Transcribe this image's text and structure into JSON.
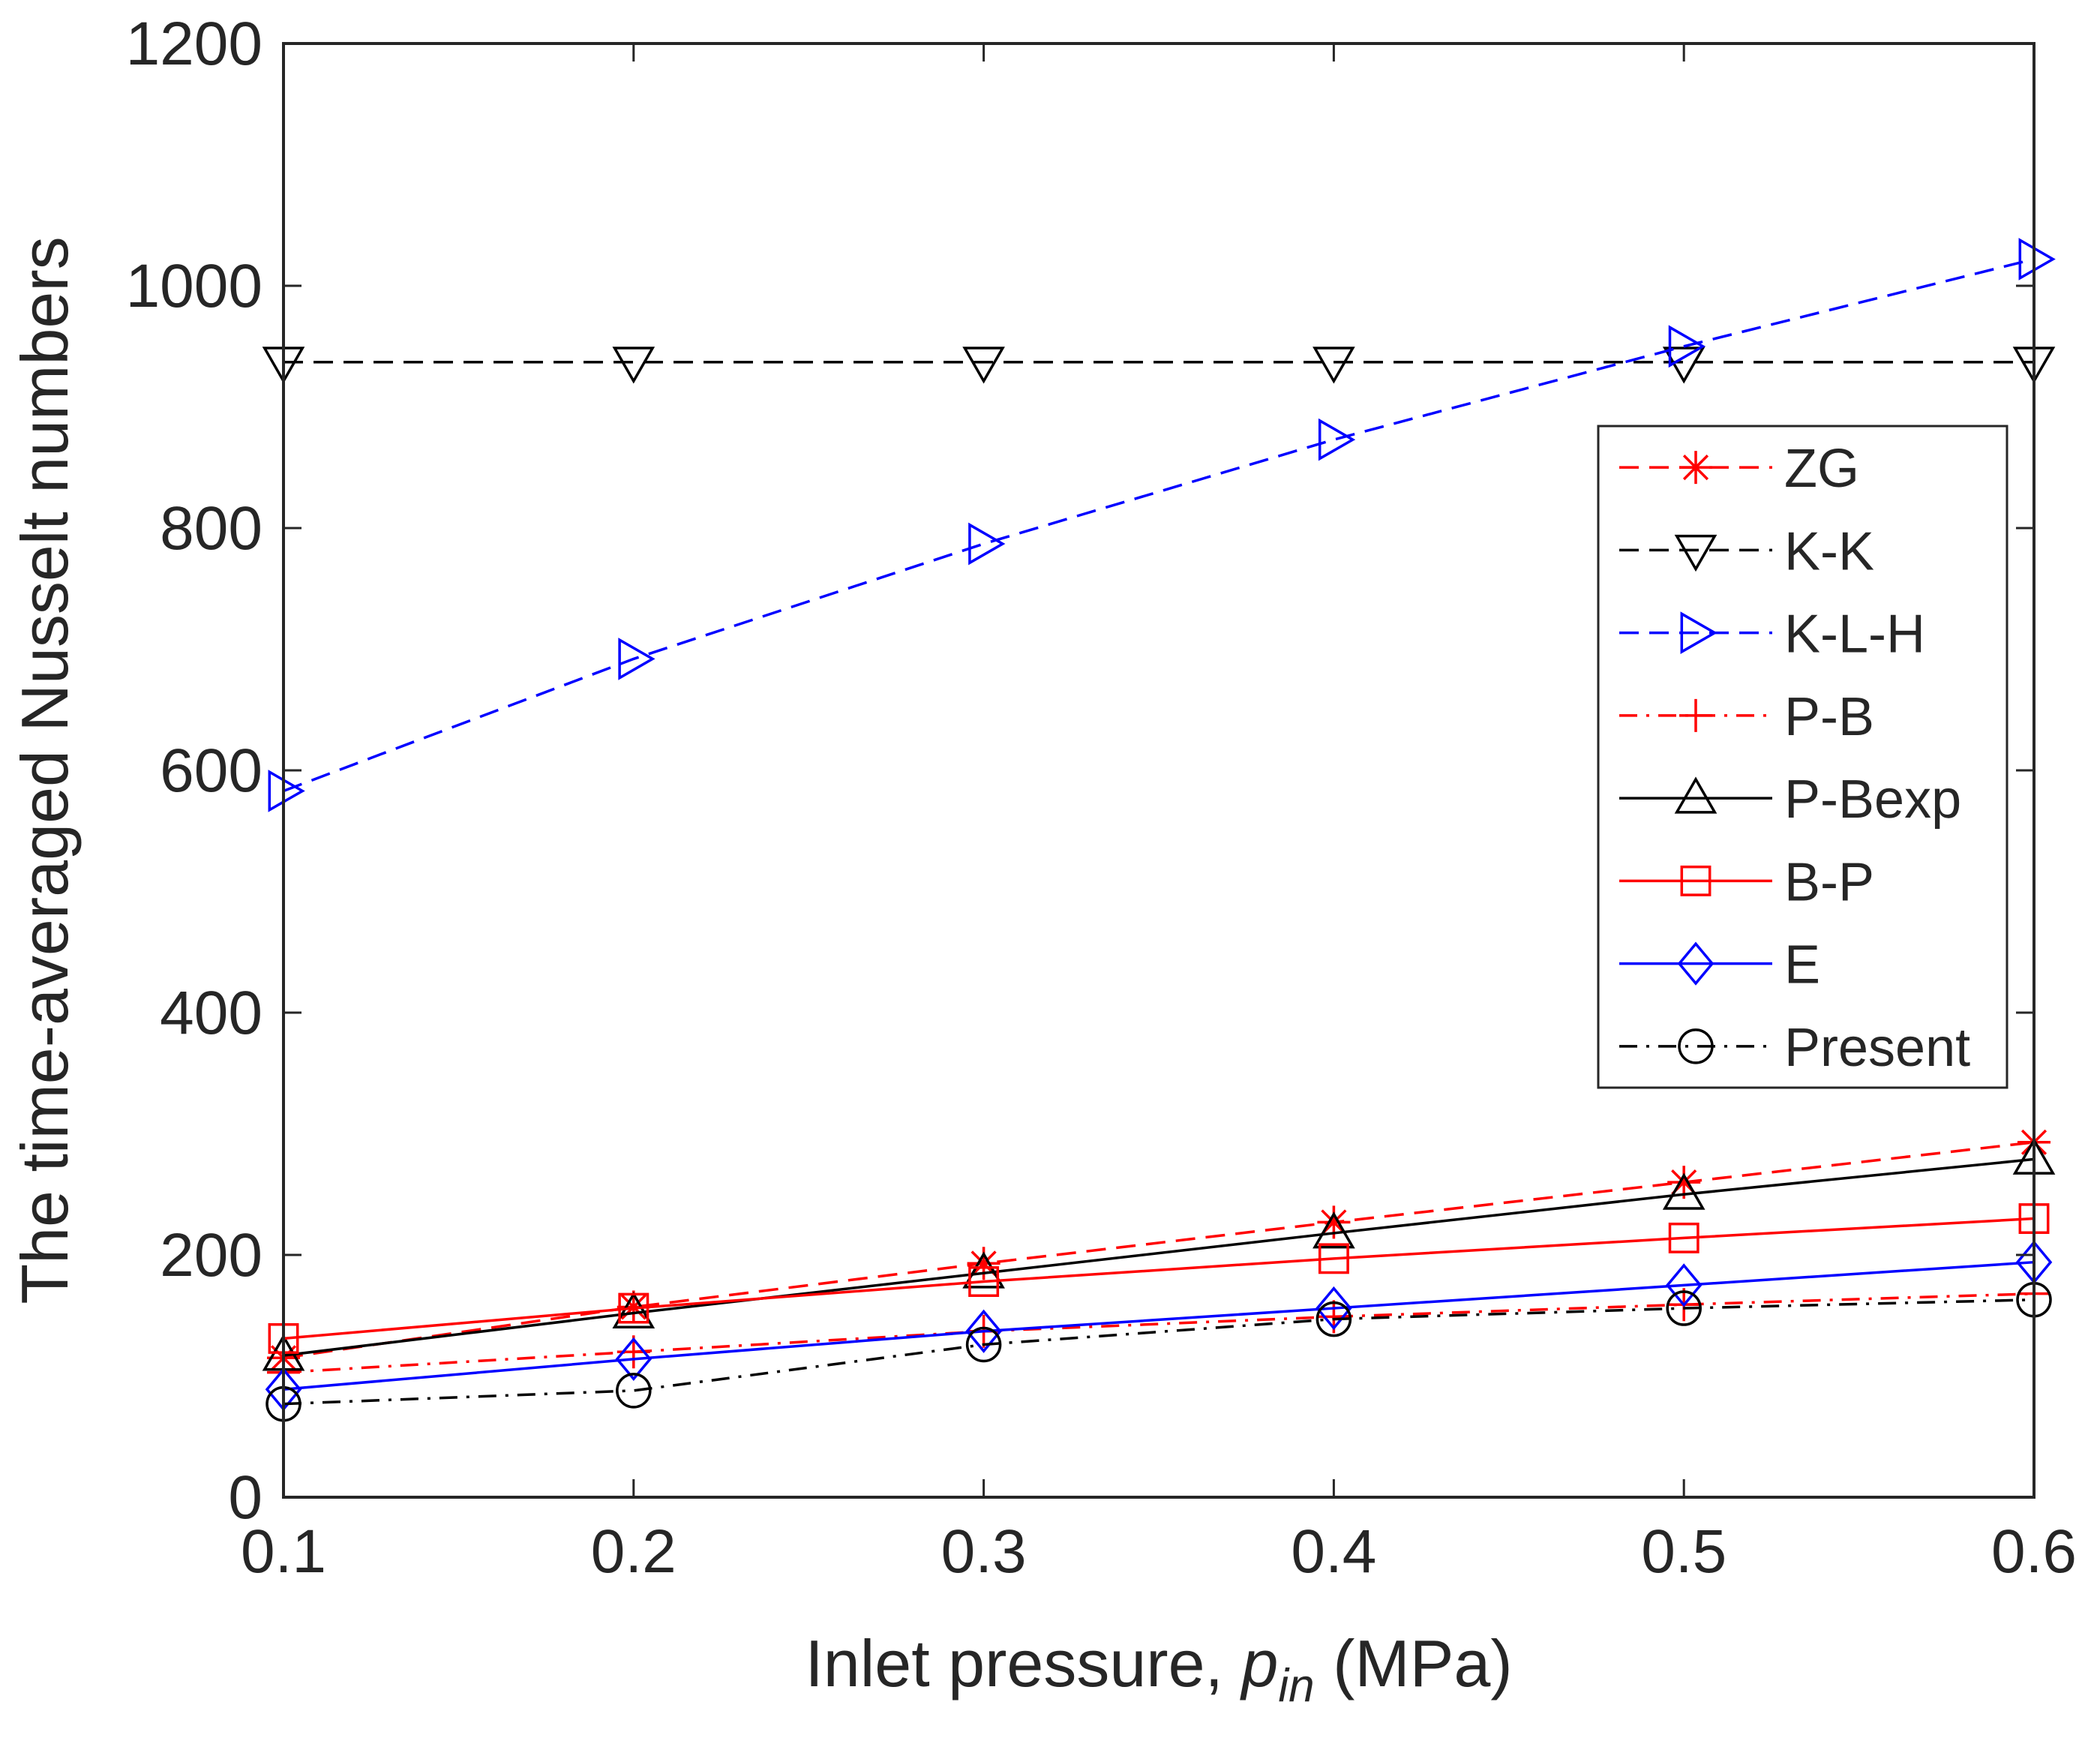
{
  "chart_data": {
    "type": "line",
    "title": "",
    "xlabel": "Inlet pressure, ",
    "xlabel_italic": "p",
    "xlabel_subscript": "in",
    "xlabel_suffix": " (MPa)",
    "ylabel": "The time-averaged Nusselt numbers",
    "xlim": [
      0.1,
      0.6
    ],
    "ylim": [
      0,
      1200
    ],
    "x": [
      0.1,
      0.2,
      0.3,
      0.4,
      0.5,
      0.6
    ],
    "x_tick_labels": [
      "0.1",
      "0.2",
      "0.3",
      "0.4",
      "0.5",
      "0.6"
    ],
    "y_ticks": [
      0,
      200,
      400,
      600,
      800,
      1000,
      1200
    ],
    "y_tick_labels": [
      "0",
      "200",
      "400",
      "600",
      "800",
      "1000",
      "1200"
    ],
    "grid": false,
    "legend_position": "right",
    "series": [
      {
        "name": "ZG",
        "color": "#ff0000",
        "dash": "dashed",
        "marker": "asterisk",
        "values": [
          115,
          157,
          193,
          227,
          260,
          293
        ]
      },
      {
        "name": "K-K",
        "color": "#000000",
        "dash": "dashed",
        "marker": "triangle-down",
        "values": [
          937,
          937,
          937,
          937,
          937,
          937
        ]
      },
      {
        "name": "K-L-H",
        "color": "#0000ff",
        "dash": "dashed",
        "marker": "triangle-right",
        "values": [
          583,
          692,
          787,
          873,
          950,
          1022
        ]
      },
      {
        "name": "P-B",
        "color": "#ff0000",
        "dash": "dashdot",
        "marker": "plus",
        "values": [
          103,
          120,
          137,
          149,
          159,
          168
        ]
      },
      {
        "name": "P-Bexp",
        "color": "#000000",
        "dash": "solid",
        "marker": "triangle-up",
        "values": [
          117,
          152,
          185,
          218,
          250,
          279
        ]
      },
      {
        "name": "B-P",
        "color": "#ff0000",
        "dash": "solid",
        "marker": "square",
        "values": [
          131,
          156,
          178,
          197,
          214,
          230
        ]
      },
      {
        "name": "E",
        "color": "#0000ff",
        "dash": "solid",
        "marker": "diamond",
        "values": [
          89,
          114,
          137,
          156,
          175,
          194
        ]
      },
      {
        "name": "Present",
        "color": "#000000",
        "dash": "dashdot",
        "marker": "circle",
        "values": [
          77,
          88,
          126,
          147,
          156,
          163
        ]
      }
    ]
  }
}
